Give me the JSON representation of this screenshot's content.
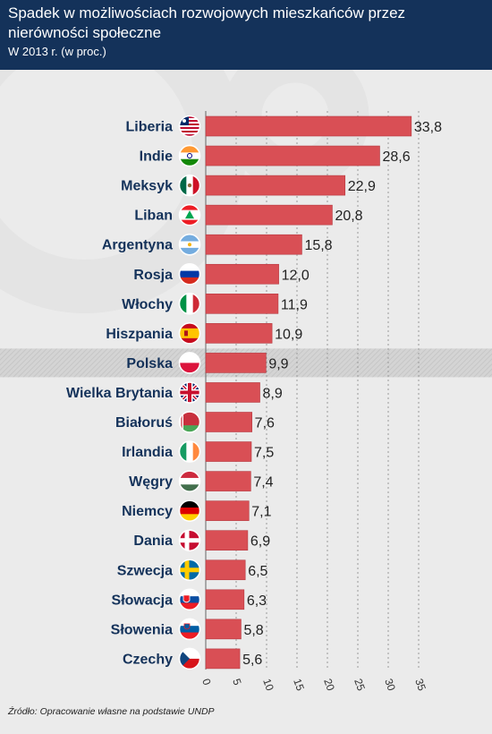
{
  "header": {
    "title": "Spadek w możliwościach rozwojowych mieszkańców przez nierówności społeczne",
    "subtitle": "W 2013 r. (w proc.)"
  },
  "footer": {
    "source": "Źródło: Opracowanie własne na podstawie UNDP"
  },
  "colors": {
    "header_bg": "#14325a",
    "bar": "#d94f55",
    "bar_border": "#b63a41",
    "label_text": "#14325a",
    "highlight_band": "#d4d4d4",
    "background": "#ebebeb"
  },
  "chart_data": {
    "type": "bar",
    "orientation": "horizontal",
    "title": "Spadek w możliwościach rozwojowych mieszkańców przez nierówności społeczne",
    "subtitle": "W 2013 r. (w proc.)",
    "categories": [
      "Liberia",
      "Indie",
      "Meksyk",
      "Liban",
      "Argentyna",
      "Rosja",
      "Włochy",
      "Hiszpania",
      "Polska",
      "Wielka Brytania",
      "Białoruś",
      "Irlandia",
      "Węgry",
      "Niemcy",
      "Dania",
      "Szwecja",
      "Słowacja",
      "Słowenia",
      "Czechy"
    ],
    "values": [
      33.8,
      28.6,
      22.9,
      20.8,
      15.8,
      12.0,
      11.9,
      10.9,
      9.9,
      8.9,
      7.6,
      7.5,
      7.4,
      7.1,
      6.9,
      6.5,
      6.3,
      5.8,
      5.6
    ],
    "value_labels": [
      "33,8",
      "28,6",
      "22,9",
      "20,8",
      "15,8",
      "12,0",
      "11,9",
      "10,9",
      "9,9",
      "8,9",
      "7,6",
      "7,5",
      "7,4",
      "7,1",
      "6,9",
      "6,5",
      "6,3",
      "5,8",
      "5,6"
    ],
    "highlight": "Polska",
    "flags": [
      "flag-liberia-icon",
      "flag-india-icon",
      "flag-mexico-icon",
      "flag-lebanon-icon",
      "flag-argentina-icon",
      "flag-russia-icon",
      "flag-italy-icon",
      "flag-spain-icon",
      "flag-poland-icon",
      "flag-uk-icon",
      "flag-belarus-icon",
      "flag-ireland-icon",
      "flag-hungary-icon",
      "flag-germany-icon",
      "flag-denmark-icon",
      "flag-sweden-icon",
      "flag-slovakia-icon",
      "flag-slovenia-icon",
      "flag-czechia-icon"
    ],
    "xlim": [
      0,
      35
    ],
    "xticks": [
      0,
      5,
      10,
      15,
      20,
      25,
      30,
      35
    ],
    "xlabel": "",
    "ylabel": "",
    "grid": "vertical dashed"
  }
}
